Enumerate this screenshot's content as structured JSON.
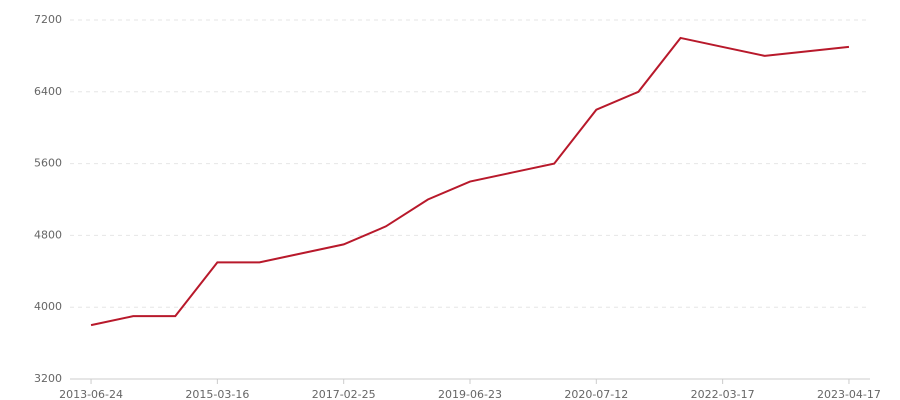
{
  "chart_data": {
    "type": "line",
    "categories": [
      "2013-06-24",
      null,
      null,
      "2015-03-16",
      null,
      null,
      "2017-02-25",
      null,
      null,
      "2019-06-23",
      null,
      null,
      "2020-07-12",
      null,
      null,
      "2022-03-17",
      null,
      null,
      "2023-04-17"
    ],
    "series": [
      {
        "color": "#b8192b",
        "values": [
          3800,
          3900,
          3900,
          4500,
          4500,
          4600,
          4700,
          4900,
          5200,
          5400,
          5500,
          5600,
          6200,
          6400,
          7000,
          6900,
          6800,
          6850,
          6900
        ]
      }
    ],
    "ylim": [
      3200,
      7200
    ],
    "yticks": [
      3200,
      4000,
      4800,
      5600,
      6400,
      7200
    ],
    "grid": true
  }
}
